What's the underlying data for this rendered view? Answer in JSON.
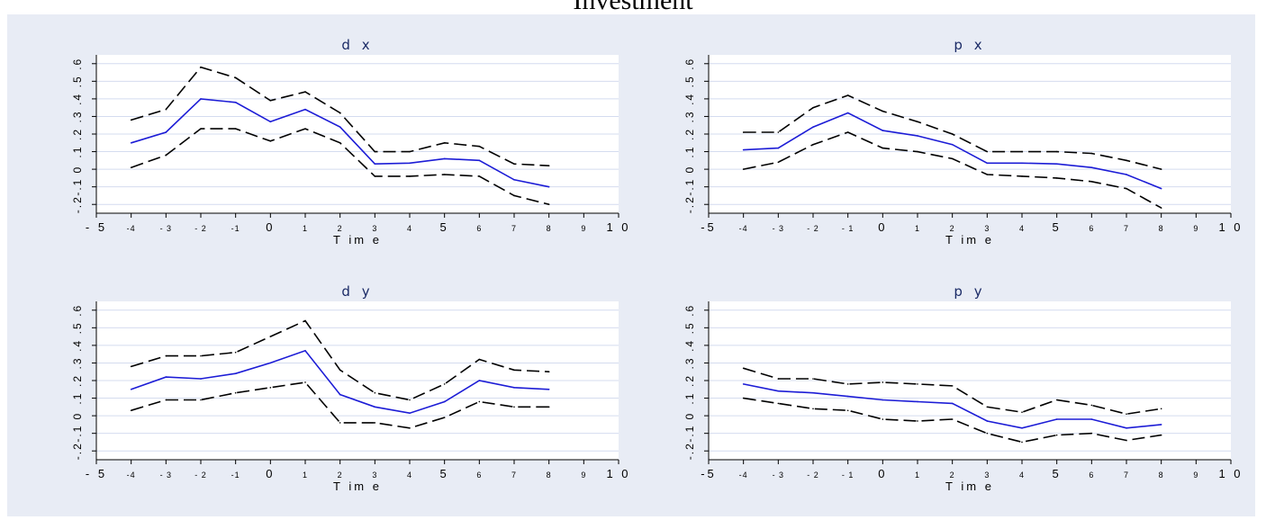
{
  "title": "Investment",
  "colors": {
    "panel_bg": "#e8ecf5",
    "plot_bg": "#ffffff",
    "grid": "#d4dcef",
    "estimate": "#1c1cd6",
    "bands": "#000000"
  },
  "chart_data": [
    {
      "type": "line",
      "title": "d x",
      "xlabel": "T im e",
      "xlim": [
        -5,
        10
      ],
      "ylim": [
        -0.25,
        0.65
      ],
      "x_ticks": [
        -5,
        -4,
        -3,
        -2,
        -1,
        0,
        1,
        2,
        3,
        4,
        5,
        6,
        7,
        8,
        9,
        10
      ],
      "x_tick_labels": [
        "- 5",
        "-4",
        "- 3",
        "- 2",
        "-1",
        "0",
        "1",
        "2",
        "3",
        "4",
        "5",
        "6",
        "7",
        "8",
        "9",
        "1 0"
      ],
      "y_ticks": [
        -0.2,
        -0.1,
        0,
        0.1,
        0.2,
        0.3,
        0.4,
        0.5,
        0.6
      ],
      "y_tick_labels": [
        "-.2",
        "-.1",
        "0",
        ".1",
        ".2",
        ".3",
        ".4",
        ".5",
        ".6"
      ],
      "grid": true,
      "x": [
        -4,
        -3,
        -2,
        -1,
        0,
        1,
        2,
        3,
        4,
        5,
        6,
        7,
        8
      ],
      "series": [
        {
          "role": "estimate",
          "values": [
            0.15,
            0.21,
            0.4,
            0.38,
            0.27,
            0.34,
            0.24,
            0.03,
            0.035,
            0.06,
            0.05,
            -0.06,
            -0.1
          ]
        },
        {
          "role": "upper",
          "values": [
            0.28,
            0.34,
            0.58,
            0.52,
            0.39,
            0.44,
            0.32,
            0.1,
            0.1,
            0.15,
            0.13,
            0.03,
            0.02
          ]
        },
        {
          "role": "lower",
          "values": [
            0.01,
            0.08,
            0.23,
            0.23,
            0.16,
            0.23,
            0.15,
            -0.04,
            -0.04,
            -0.03,
            -0.04,
            -0.15,
            -0.2
          ]
        }
      ]
    },
    {
      "type": "line",
      "title": "p x",
      "xlabel": "T im e",
      "xlim": [
        -5,
        10
      ],
      "ylim": [
        -0.25,
        0.65
      ],
      "x_ticks": [
        -5,
        -4,
        -3,
        -2,
        -1,
        0,
        1,
        2,
        3,
        4,
        5,
        6,
        7,
        8,
        9,
        10
      ],
      "x_tick_labels": [
        "-5",
        "-4",
        "- 3",
        "- 2",
        "- 1",
        "0",
        "1",
        "2",
        "3",
        "4",
        "5",
        "6",
        "7",
        "8",
        "9",
        "1 0"
      ],
      "y_ticks": [
        -0.2,
        -0.1,
        0,
        0.1,
        0.2,
        0.3,
        0.4,
        0.5,
        0.6
      ],
      "y_tick_labels": [
        "-.2",
        "-.1",
        "0",
        ".1",
        ".2",
        ".3",
        ".4",
        ".5",
        ".6"
      ],
      "grid": true,
      "x": [
        -4,
        -3,
        -2,
        -1,
        0,
        1,
        2,
        3,
        4,
        5,
        6,
        7,
        8
      ],
      "series": [
        {
          "role": "estimate",
          "values": [
            0.11,
            0.12,
            0.24,
            0.32,
            0.22,
            0.19,
            0.14,
            0.035,
            0.035,
            0.03,
            0.01,
            -0.03,
            -0.11
          ]
        },
        {
          "role": "upper",
          "values": [
            0.21,
            0.21,
            0.35,
            0.42,
            0.33,
            0.27,
            0.2,
            0.1,
            0.1,
            0.1,
            0.09,
            0.05,
            0.0
          ]
        },
        {
          "role": "lower",
          "values": [
            0.0,
            0.04,
            0.14,
            0.21,
            0.12,
            0.1,
            0.06,
            -0.03,
            -0.04,
            -0.05,
            -0.07,
            -0.11,
            -0.22
          ]
        }
      ]
    },
    {
      "type": "line",
      "title": "d y",
      "xlabel": "T im e",
      "xlim": [
        -5,
        10
      ],
      "ylim": [
        -0.25,
        0.65
      ],
      "x_ticks": [
        -5,
        -4,
        -3,
        -2,
        -1,
        0,
        1,
        2,
        3,
        4,
        5,
        6,
        7,
        8,
        9,
        10
      ],
      "x_tick_labels": [
        "- 5",
        "-4",
        "- 3",
        "- 2",
        "-1",
        "0",
        "1",
        "2",
        "3",
        "4",
        "5",
        "6",
        "7",
        "8",
        "9",
        "1 0"
      ],
      "y_ticks": [
        -0.2,
        -0.1,
        0,
        0.1,
        0.2,
        0.3,
        0.4,
        0.5,
        0.6
      ],
      "y_tick_labels": [
        "-.2",
        "-.1",
        "0",
        ".1",
        ".2",
        ".3",
        ".4",
        ".5",
        ".6"
      ],
      "grid": true,
      "x": [
        -4,
        -3,
        -2,
        -1,
        0,
        1,
        2,
        3,
        4,
        5,
        6,
        7,
        8
      ],
      "series": [
        {
          "role": "estimate",
          "values": [
            0.15,
            0.22,
            0.21,
            0.24,
            0.3,
            0.37,
            0.12,
            0.05,
            0.015,
            0.08,
            0.2,
            0.16,
            0.15
          ]
        },
        {
          "role": "upper",
          "values": [
            0.28,
            0.34,
            0.34,
            0.36,
            0.45,
            0.54,
            0.26,
            0.13,
            0.09,
            0.18,
            0.32,
            0.26,
            0.25
          ]
        },
        {
          "role": "lower",
          "values": [
            0.03,
            0.09,
            0.09,
            0.13,
            0.16,
            0.19,
            -0.04,
            -0.04,
            -0.07,
            -0.01,
            0.08,
            0.05,
            0.05
          ]
        }
      ]
    },
    {
      "type": "line",
      "title": "p y",
      "xlabel": "T im e",
      "xlim": [
        -5,
        10
      ],
      "ylim": [
        -0.25,
        0.65
      ],
      "x_ticks": [
        -5,
        -4,
        -3,
        -2,
        -1,
        0,
        1,
        2,
        3,
        4,
        5,
        6,
        7,
        8,
        9,
        10
      ],
      "x_tick_labels": [
        "-5",
        "-4",
        "- 3",
        "- 2",
        "- 1",
        "0",
        "1",
        "2",
        "3",
        "4",
        "5",
        "6",
        "7",
        "8",
        "9",
        "1 0"
      ],
      "y_ticks": [
        -0.2,
        -0.1,
        0,
        0.1,
        0.2,
        0.3,
        0.4,
        0.5,
        0.6
      ],
      "y_tick_labels": [
        "-.2",
        "-.1",
        "0",
        ".1",
        ".2",
        ".3",
        ".4",
        ".5",
        ".6"
      ],
      "grid": true,
      "x": [
        -4,
        -3,
        -2,
        -1,
        0,
        1,
        2,
        3,
        4,
        5,
        6,
        7,
        8
      ],
      "series": [
        {
          "role": "estimate",
          "values": [
            0.18,
            0.14,
            0.13,
            0.11,
            0.09,
            0.08,
            0.07,
            -0.03,
            -0.07,
            -0.02,
            -0.02,
            -0.07,
            -0.05
          ]
        },
        {
          "role": "upper",
          "values": [
            0.27,
            0.21,
            0.21,
            0.18,
            0.19,
            0.18,
            0.17,
            0.05,
            0.02,
            0.09,
            0.06,
            0.01,
            0.04
          ]
        },
        {
          "role": "lower",
          "values": [
            0.1,
            0.07,
            0.04,
            0.03,
            -0.02,
            -0.03,
            -0.02,
            -0.1,
            -0.15,
            -0.11,
            -0.1,
            -0.14,
            -0.11
          ]
        }
      ]
    }
  ]
}
